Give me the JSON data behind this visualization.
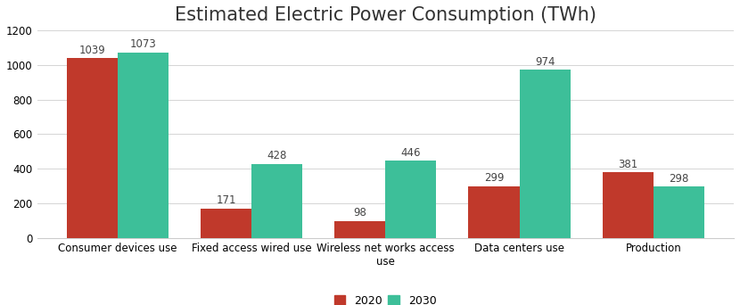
{
  "title": "Estimated Electric Power Consumption (TWh)",
  "categories": [
    "Consumer devices use",
    "Fixed access wired use",
    "Wireless net works access\nuse",
    "Data centers use",
    "Production"
  ],
  "values_2020": [
    1039,
    171,
    98,
    299,
    381
  ],
  "values_2030": [
    1073,
    428,
    446,
    974,
    298
  ],
  "color_2020": "#c0392b",
  "color_2030": "#3dbf99",
  "ylim": [
    0,
    1200
  ],
  "yticks": [
    0,
    200,
    400,
    600,
    800,
    1000,
    1200
  ],
  "legend_2020": "2020",
  "legend_2030": "2030",
  "bar_width": 0.38,
  "label_fontsize": 8.5,
  "title_fontsize": 15,
  "tick_fontsize": 8.5,
  "legend_fontsize": 9,
  "background_color": "#ffffff"
}
